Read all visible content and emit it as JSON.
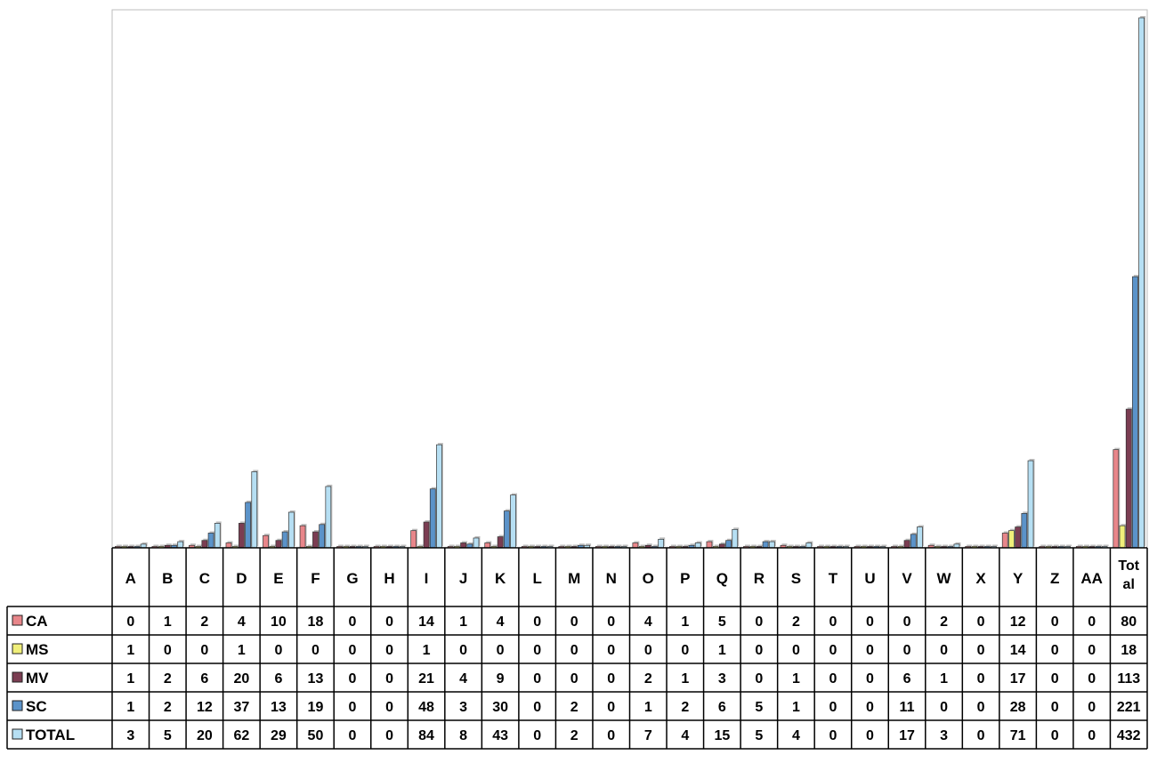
{
  "chart_data": {
    "type": "bar",
    "title": "",
    "xlabel": "",
    "ylabel": "",
    "ylim": [
      0,
      432
    ],
    "grid": false,
    "legend": "data-table",
    "categories": [
      "A",
      "B",
      "C",
      "D",
      "E",
      "F",
      "G",
      "H",
      "I",
      "J",
      "K",
      "L",
      "M",
      "N",
      "O",
      "P",
      "Q",
      "R",
      "S",
      "T",
      "U",
      "V",
      "W",
      "X",
      "Y",
      "Z",
      "AA",
      "Total"
    ],
    "series": [
      {
        "name": "CA",
        "color": "#e8868a",
        "values": [
          0,
          1,
          2,
          4,
          10,
          18,
          0,
          0,
          14,
          1,
          4,
          0,
          0,
          0,
          4,
          1,
          5,
          0,
          2,
          0,
          0,
          0,
          2,
          0,
          12,
          0,
          0,
          80
        ]
      },
      {
        "name": "MS",
        "color": "#f0ef7a",
        "values": [
          1,
          0,
          0,
          1,
          0,
          0,
          0,
          0,
          1,
          0,
          0,
          0,
          0,
          0,
          0,
          0,
          1,
          0,
          0,
          0,
          0,
          0,
          0,
          0,
          14,
          0,
          0,
          18
        ]
      },
      {
        "name": "MV",
        "color": "#7b3d52",
        "values": [
          1,
          2,
          6,
          20,
          6,
          13,
          0,
          0,
          21,
          4,
          9,
          0,
          0,
          0,
          2,
          1,
          3,
          0,
          1,
          0,
          0,
          6,
          1,
          0,
          17,
          0,
          0,
          113
        ]
      },
      {
        "name": "SC",
        "color": "#5b93c9",
        "values": [
          1,
          2,
          12,
          37,
          13,
          19,
          0,
          0,
          48,
          3,
          30,
          0,
          2,
          0,
          1,
          2,
          6,
          5,
          1,
          0,
          0,
          11,
          0,
          0,
          28,
          0,
          0,
          221
        ]
      },
      {
        "name": "TOTAL",
        "color": "#b6dff3",
        "values": [
          3,
          5,
          20,
          62,
          29,
          50,
          0,
          0,
          84,
          8,
          43,
          0,
          2,
          0,
          7,
          4,
          15,
          5,
          4,
          0,
          0,
          17,
          3,
          0,
          71,
          0,
          0,
          432
        ]
      }
    ]
  }
}
